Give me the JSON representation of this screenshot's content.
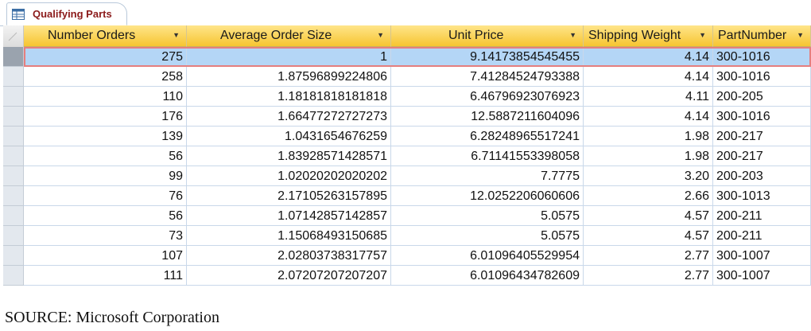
{
  "tab": {
    "label": "Qualifying Parts",
    "icon": "query-table-icon"
  },
  "columns": [
    "Number Orders",
    "Average Order Size",
    "Unit Price",
    "Shipping Weight",
    "PartNumber"
  ],
  "rows": [
    [
      "275",
      "1",
      "9.14173854545455",
      "4.14",
      "300-1016"
    ],
    [
      "258",
      "1.87596899224806",
      "7.41284524793388",
      "4.14",
      "300-1016"
    ],
    [
      "110",
      "1.18181818181818",
      "6.46796923076923",
      "4.11",
      "200-205"
    ],
    [
      "176",
      "1.66477272727273",
      "12.5887211604096",
      "4.14",
      "300-1016"
    ],
    [
      "139",
      "1.0431654676259",
      "6.28248965517241",
      "1.98",
      "200-217"
    ],
    [
      "56",
      "1.83928571428571",
      "6.71141553398058",
      "1.98",
      "200-217"
    ],
    [
      "99",
      "1.02020202020202",
      "7.7775",
      "3.20",
      "200-203"
    ],
    [
      "76",
      "2.17105263157895",
      "12.0252206060606",
      "2.66",
      "300-1013"
    ],
    [
      "56",
      "1.07142857142857",
      "5.0575",
      "4.57",
      "200-211"
    ],
    [
      "73",
      "1.15068493150685",
      "5.0575",
      "4.57",
      "200-211"
    ],
    [
      "107",
      "2.02803738317757",
      "6.01096405529954",
      "2.77",
      "300-1007"
    ],
    [
      "111",
      "2.07207207207207",
      "6.01096434782609",
      "2.77",
      "300-1007"
    ]
  ],
  "selected_row": 0,
  "source_caption": "SOURCE: Microsoft Corporation",
  "colors": {
    "header": "#f6c531",
    "selected_row": "#b4d6f6",
    "selection_outline": "#e57f7f",
    "tab_text": "#8b1a1a"
  }
}
